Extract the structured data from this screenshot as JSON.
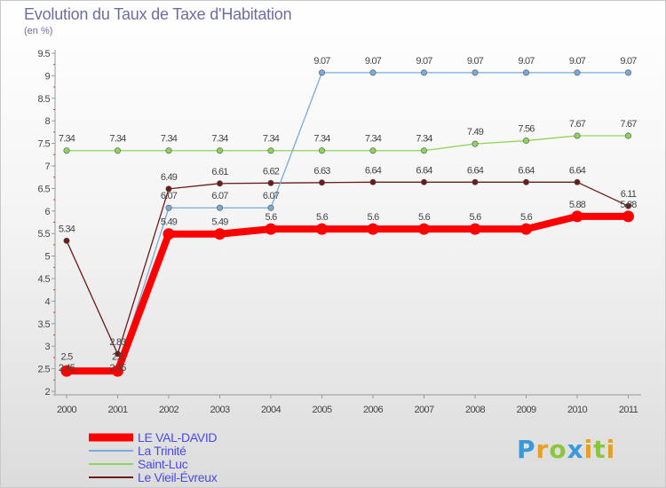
{
  "chart_data": {
    "type": "line",
    "title": "Evolution du Taux de Taxe d'Habitation",
    "ylabel": "(en %)",
    "categories": [
      "2000",
      "2001",
      "2002",
      "2003",
      "2004",
      "2005",
      "2006",
      "2007",
      "2008",
      "2009",
      "2010",
      "2011"
    ],
    "ylim": [
      2,
      9.5
    ],
    "yticks": [
      "2",
      "2.5",
      "3",
      "3.5",
      "4",
      "4.5",
      "5",
      "5.5",
      "6",
      "6.5",
      "7",
      "7.5",
      "8",
      "8.5",
      "9",
      "9.5"
    ],
    "grid": false,
    "series": [
      {
        "name": "Le Vieil-Évreux",
        "color": "#6a1b1b",
        "values": [
          5.34,
          2.83,
          6.49,
          6.61,
          6.62,
          6.63,
          6.64,
          6.64,
          6.64,
          6.64,
          6.64,
          6.11
        ],
        "labels": [
          "5.34",
          "2.83",
          "6.49",
          "6.61",
          "6.62",
          "6.63",
          "6.64",
          "6.64",
          "6.64",
          "6.64",
          "6.64",
          "6.11"
        ]
      },
      {
        "name": "Saint-Luc",
        "color": "#8ed45c",
        "values": [
          7.34,
          7.34,
          7.34,
          7.34,
          7.34,
          7.34,
          7.34,
          7.34,
          7.49,
          7.56,
          7.67,
          7.67
        ],
        "labels": [
          "7.34",
          "7.34",
          "7.34",
          "7.34",
          "7.34",
          "7.34",
          "7.34",
          "7.34",
          "7.49",
          "7.56",
          "7.67",
          "7.67"
        ]
      },
      {
        "name": "La Trinité",
        "color": "#7aaad6",
        "values": [
          2.5,
          2.5,
          6.07,
          6.07,
          6.07,
          9.07,
          9.07,
          9.07,
          9.07,
          9.07,
          9.07,
          9.07
        ],
        "labels": [
          "2.5",
          "2.5",
          "6.07",
          "6.07",
          "6.07",
          "9.07",
          "9.07",
          "9.07",
          "9.07",
          "9.07",
          "9.07",
          "9.07"
        ]
      },
      {
        "name": "LE VAL-DAVID",
        "color": "#ff0000",
        "values": [
          2.45,
          2.45,
          5.49,
          5.49,
          5.6,
          5.6,
          5.6,
          5.6,
          5.6,
          5.6,
          5.88,
          5.88
        ],
        "labels": [
          "2.45",
          "2.45",
          "5.49",
          "5.49",
          "5.6",
          "5.6",
          "5.6",
          "5.6",
          "5.6",
          "5.6",
          "5.88",
          "5.88"
        ]
      }
    ],
    "legend": [
      {
        "name": "LE VAL-DAVID",
        "color": "#ff0000"
      },
      {
        "name": "La Trinité",
        "color": "#7aaad6"
      },
      {
        "name": "Saint-Luc",
        "color": "#8ed45c"
      },
      {
        "name": "Le Vieil-Évreux",
        "color": "#6a1b1b"
      }
    ]
  },
  "brand": {
    "letters": [
      "P",
      "r",
      "o",
      "x",
      "i",
      "t",
      "i"
    ],
    "colors": [
      "#3a9ad9",
      "#e8a020",
      "#8cc63f",
      "#3a9ad9",
      "#e8a020",
      "#8cc63f",
      "#e8a020"
    ]
  }
}
